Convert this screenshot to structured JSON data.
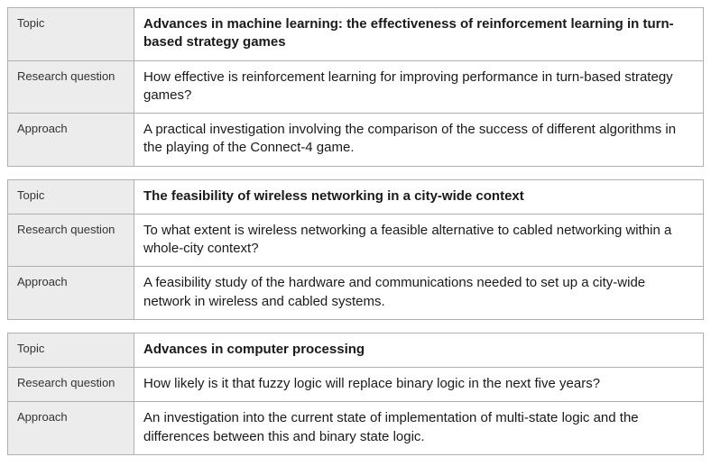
{
  "labels": {
    "topic": "Topic",
    "research_question": "Research question",
    "approach": "Approach"
  },
  "groups": [
    {
      "topic": "Advances in machine learning: the effectiveness of reinforcement learning in turn-based strategy games",
      "research_question": "How effective is reinforcement learning for improving performance in turn-based strategy games?",
      "approach": "A practical investigation involving the comparison of the success of different algorithms in the playing of the Connect-4 game."
    },
    {
      "topic": "The feasibility of wireless networking in a city-wide context",
      "research_question": "To what extent is wireless networking a feasible alternative to cabled networking within a whole-city context?",
      "approach": "A feasibility study of the hardware and communications needed to set up a city-wide network in wireless and cabled systems."
    },
    {
      "topic": "Advances in computer processing",
      "research_question": "How likely is it that fuzzy logic will replace binary logic in the next five years?",
      "approach": "An investigation into the current state of implementation of multi-state logic and the differences between this and binary state logic."
    }
  ]
}
